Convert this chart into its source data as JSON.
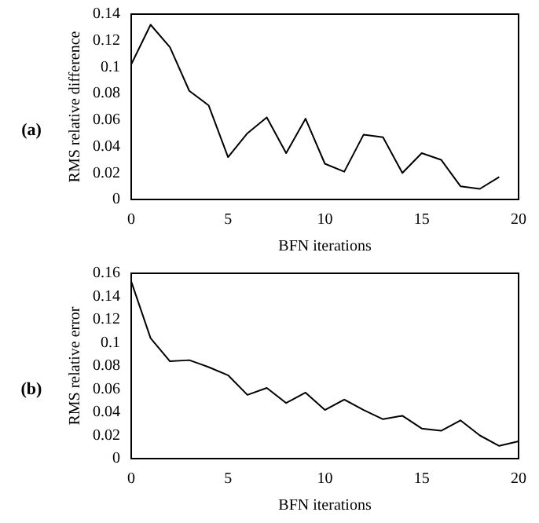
{
  "chart_data": [
    {
      "type": "line",
      "xlabel": "BFN iterations",
      "ylabel": "RMS relative difference",
      "annotations": [
        "(a)"
      ],
      "x": [
        0,
        1,
        2,
        3,
        4,
        5,
        6,
        7,
        8,
        9,
        10,
        11,
        12,
        13,
        14,
        15,
        16,
        17,
        18,
        19
      ],
      "series": [
        {
          "color": "#000000",
          "values": [
            0.102,
            0.132,
            0.115,
            0.082,
            0.071,
            0.032,
            0.05,
            0.062,
            0.035,
            0.061,
            0.027,
            0.021,
            0.049,
            0.047,
            0.02,
            0.035,
            0.03,
            0.01,
            0.008,
            0.017
          ]
        }
      ],
      "xlim": [
        0,
        20
      ],
      "xticks": [
        0,
        5,
        10,
        15,
        20
      ],
      "ylim": [
        0,
        0.14
      ],
      "yticks": [
        0,
        0.02,
        0.04,
        0.06,
        0.08,
        0.1,
        0.12,
        0.14
      ],
      "grid": false,
      "legend": false,
      "marker": "none",
      "line_style": "solid"
    },
    {
      "type": "line",
      "xlabel": "BFN iterations",
      "ylabel": "RMS relative error",
      "annotations": [
        "(b)"
      ],
      "x": [
        0,
        1,
        2,
        3,
        4,
        5,
        6,
        7,
        8,
        9,
        10,
        11,
        12,
        13,
        14,
        15,
        16,
        17,
        18,
        19,
        20
      ],
      "series": [
        {
          "color": "#000000",
          "values": [
            0.153,
            0.104,
            0.084,
            0.085,
            0.079,
            0.072,
            0.055,
            0.061,
            0.048,
            0.057,
            0.042,
            0.051,
            0.042,
            0.034,
            0.037,
            0.026,
            0.024,
            0.033,
            0.02,
            0.011,
            0.015
          ]
        }
      ],
      "xlim": [
        0,
        20
      ],
      "xticks": [
        0,
        5,
        10,
        15,
        20
      ],
      "ylim": [
        0,
        0.16
      ],
      "yticks": [
        0,
        0.02,
        0.04,
        0.06,
        0.08,
        0.1,
        0.12,
        0.14,
        0.16
      ],
      "grid": false,
      "legend": false,
      "marker": "none",
      "line_style": "solid"
    }
  ]
}
